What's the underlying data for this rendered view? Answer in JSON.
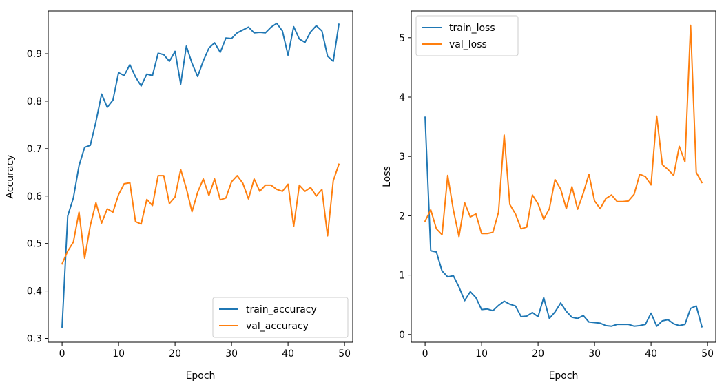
{
  "chart_data": [
    {
      "type": "line",
      "title": "",
      "xlabel": "Epoch",
      "ylabel": "Accuracy",
      "xlim": [
        -2.45,
        51.45
      ],
      "ylim": [
        0.292,
        0.99
      ],
      "xticks": [
        0,
        10,
        20,
        30,
        40,
        50
      ],
      "yticks": [
        0.3,
        0.4,
        0.5,
        0.6,
        0.7,
        0.8,
        0.9
      ],
      "ytick_labels": [
        "0.3",
        "0.4",
        "0.5",
        "0.6",
        "0.7",
        "0.8",
        "0.9"
      ],
      "legend_position": "lower-right",
      "x": [
        0,
        1,
        2,
        3,
        4,
        5,
        6,
        7,
        8,
        9,
        10,
        11,
        12,
        13,
        14,
        15,
        16,
        17,
        18,
        19,
        20,
        21,
        22,
        23,
        24,
        25,
        26,
        27,
        28,
        29,
        30,
        31,
        32,
        33,
        34,
        35,
        36,
        37,
        38,
        39,
        40,
        41,
        42,
        43,
        44,
        45,
        46,
        47,
        48,
        49
      ],
      "series": [
        {
          "name": "train_accuracy",
          "color": "#1f77b4",
          "values": [
            0.324,
            0.558,
            0.596,
            0.664,
            0.703,
            0.707,
            0.757,
            0.815,
            0.787,
            0.802,
            0.86,
            0.854,
            0.877,
            0.851,
            0.832,
            0.857,
            0.854,
            0.901,
            0.898,
            0.884,
            0.905,
            0.836,
            0.916,
            0.88,
            0.852,
            0.885,
            0.912,
            0.923,
            0.903,
            0.933,
            0.932,
            0.944,
            0.95,
            0.956,
            0.944,
            0.945,
            0.944,
            0.956,
            0.964,
            0.948,
            0.897,
            0.957,
            0.931,
            0.924,
            0.946,
            0.959,
            0.948,
            0.895,
            0.884,
            0.962
          ]
        },
        {
          "name": "val_accuracy",
          "color": "#ff7f0e",
          "values": [
            0.457,
            0.484,
            0.503,
            0.566,
            0.469,
            0.538,
            0.586,
            0.543,
            0.573,
            0.566,
            0.603,
            0.626,
            0.628,
            0.546,
            0.541,
            0.593,
            0.58,
            0.643,
            0.643,
            0.584,
            0.598,
            0.656,
            0.616,
            0.567,
            0.608,
            0.636,
            0.601,
            0.636,
            0.592,
            0.596,
            0.63,
            0.643,
            0.627,
            0.594,
            0.636,
            0.61,
            0.623,
            0.623,
            0.614,
            0.61,
            0.625,
            0.536,
            0.623,
            0.61,
            0.618,
            0.6,
            0.614,
            0.516,
            0.632,
            0.667
          ]
        }
      ]
    },
    {
      "type": "line",
      "title": "",
      "xlabel": "Epoch",
      "ylabel": "Loss",
      "xlim": [
        -2.45,
        51.45
      ],
      "ylim": [
        -0.13,
        5.45
      ],
      "xticks": [
        0,
        10,
        20,
        30,
        40,
        50
      ],
      "yticks": [
        0,
        1,
        2,
        3,
        4,
        5
      ],
      "ytick_labels": [
        "0",
        "1",
        "2",
        "3",
        "4",
        "5"
      ],
      "legend_position": "upper-left",
      "x": [
        0,
        1,
        2,
        3,
        4,
        5,
        6,
        7,
        8,
        9,
        10,
        11,
        12,
        13,
        14,
        15,
        16,
        17,
        18,
        19,
        20,
        21,
        22,
        23,
        24,
        25,
        26,
        27,
        28,
        29,
        30,
        31,
        32,
        33,
        34,
        35,
        36,
        37,
        38,
        39,
        40,
        41,
        42,
        43,
        44,
        45,
        46,
        47,
        48,
        49
      ],
      "series": [
        {
          "name": "train_loss",
          "color": "#1f77b4",
          "values": [
            3.66,
            1.41,
            1.39,
            1.07,
            0.97,
            0.99,
            0.8,
            0.57,
            0.72,
            0.62,
            0.42,
            0.43,
            0.4,
            0.49,
            0.56,
            0.51,
            0.48,
            0.3,
            0.31,
            0.37,
            0.3,
            0.62,
            0.27,
            0.38,
            0.53,
            0.39,
            0.29,
            0.27,
            0.32,
            0.21,
            0.2,
            0.19,
            0.15,
            0.14,
            0.17,
            0.17,
            0.17,
            0.14,
            0.15,
            0.17,
            0.36,
            0.14,
            0.23,
            0.25,
            0.18,
            0.15,
            0.17,
            0.44,
            0.48,
            0.13
          ]
        },
        {
          "name": "val_loss",
          "color": "#ff7f0e",
          "values": [
            1.91,
            2.1,
            1.78,
            1.68,
            2.68,
            2.1,
            1.65,
            2.22,
            1.98,
            2.03,
            1.7,
            1.7,
            1.72,
            2.06,
            3.36,
            2.19,
            2.03,
            1.78,
            1.81,
            2.35,
            2.2,
            1.94,
            2.12,
            2.61,
            2.45,
            2.12,
            2.49,
            2.11,
            2.38,
            2.7,
            2.25,
            2.12,
            2.29,
            2.35,
            2.24,
            2.24,
            2.25,
            2.36,
            2.7,
            2.66,
            2.52,
            3.68,
            2.86,
            2.78,
            2.68,
            3.17,
            2.91,
            5.21,
            2.73,
            2.56
          ]
        }
      ]
    }
  ]
}
